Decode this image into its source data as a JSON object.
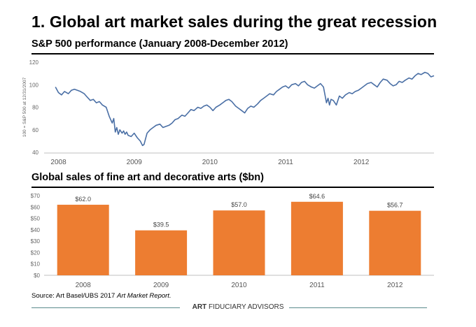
{
  "page": {
    "title": "1. Global art market sales during the great recession",
    "source_prefix": "Source: Art Basel/UBS 2017 ",
    "source_italic": "Art Market Report.",
    "footer_brand": "ART",
    "footer_rest": " FIDUCIARY ADVISORS",
    "line_color": "#4a6fa5",
    "bar_color": "#ed7d31",
    "footer_line_color": "#5a8a8c"
  },
  "chart_data": [
    {
      "type": "line",
      "title": "S&P 500 performance (January 2008-December 2012)",
      "ylabel": "100 = S&P 500 at 12/31/2007",
      "xlabel": "",
      "ylim": [
        40,
        120
      ],
      "yticks": [
        40,
        60,
        80,
        100,
        120
      ],
      "xticks": [
        "2008",
        "2009",
        "2010",
        "2011",
        "2012"
      ],
      "grid": false,
      "series": [
        {
          "x": [
            2008.0,
            2008.04,
            2008.08,
            2008.12,
            2008.17,
            2008.21,
            2008.25,
            2008.29,
            2008.33,
            2008.38,
            2008.42,
            2008.46,
            2008.5,
            2008.54,
            2008.58,
            2008.62,
            2008.67,
            2008.71,
            2008.75,
            2008.77,
            2008.79,
            2008.81,
            2008.83,
            2008.85,
            2008.88,
            2008.9,
            2008.92,
            2008.94,
            2008.96,
            2009.0,
            2009.04,
            2009.08,
            2009.12,
            2009.15,
            2009.17,
            2009.19,
            2009.21,
            2009.25,
            2009.29,
            2009.33,
            2009.38,
            2009.42,
            2009.46,
            2009.5,
            2009.54,
            2009.58,
            2009.62,
            2009.67,
            2009.71,
            2009.75,
            2009.79,
            2009.83,
            2009.88,
            2009.92,
            2009.96,
            2010.0,
            2010.04,
            2010.08,
            2010.12,
            2010.17,
            2010.21,
            2010.25,
            2010.29,
            2010.33,
            2010.38,
            2010.42,
            2010.46,
            2010.5,
            2010.54,
            2010.58,
            2010.62,
            2010.67,
            2010.71,
            2010.75,
            2010.79,
            2010.83,
            2010.88,
            2010.92,
            2010.96,
            2011.0,
            2011.04,
            2011.08,
            2011.12,
            2011.17,
            2011.21,
            2011.25,
            2011.29,
            2011.33,
            2011.38,
            2011.42,
            2011.46,
            2011.5,
            2011.54,
            2011.58,
            2011.6,
            2011.62,
            2011.64,
            2011.67,
            2011.71,
            2011.75,
            2011.79,
            2011.83,
            2011.88,
            2011.92,
            2011.96,
            2012.0,
            2012.04,
            2012.08,
            2012.12,
            2012.17,
            2012.21,
            2012.25,
            2012.29,
            2012.33,
            2012.38,
            2012.42,
            2012.46,
            2012.5,
            2012.54,
            2012.58,
            2012.62,
            2012.67,
            2012.71,
            2012.75,
            2012.79,
            2012.83,
            2012.88,
            2012.92,
            2012.96,
            2013.0
          ],
          "y": [
            98,
            93,
            91,
            94,
            92,
            95,
            96,
            95,
            94,
            92,
            89,
            86,
            87,
            84,
            85,
            82,
            80,
            72,
            66,
            70,
            58,
            62,
            56,
            60,
            57,
            59,
            56,
            58,
            55,
            54,
            57,
            53,
            50,
            46,
            47,
            52,
            57,
            60,
            62,
            64,
            65,
            62,
            63,
            64,
            66,
            69,
            70,
            73,
            72,
            75,
            78,
            77,
            80,
            79,
            81,
            82,
            80,
            77,
            80,
            82,
            84,
            86,
            87,
            85,
            81,
            79,
            77,
            75,
            79,
            81,
            80,
            83,
            86,
            88,
            90,
            92,
            91,
            94,
            96,
            98,
            99,
            97,
            100,
            101,
            99,
            102,
            103,
            100,
            98,
            97,
            99,
            101,
            98,
            84,
            88,
            82,
            87,
            86,
            82,
            90,
            88,
            91,
            93,
            92,
            94,
            95,
            97,
            99,
            101,
            102,
            100,
            98,
            102,
            105,
            104,
            101,
            99,
            100,
            103,
            102,
            104,
            106,
            105,
            108,
            110,
            109,
            111,
            110,
            107,
            108
          ]
        }
      ]
    },
    {
      "type": "bar",
      "title": "Global sales of fine art and decorative arts ($bn)",
      "categories": [
        "2008",
        "2009",
        "2010",
        "2011",
        "2012"
      ],
      "values": [
        62.0,
        39.5,
        57.0,
        64.6,
        56.7
      ],
      "data_labels": [
        "$62.0",
        "$39.5",
        "$57.0",
        "$64.6",
        "$56.7"
      ],
      "ylim": [
        0,
        70
      ],
      "yticks": [
        "$0",
        "$10",
        "$20",
        "$30",
        "$40",
        "$50",
        "$60",
        "$70"
      ],
      "xlabel": "",
      "ylabel": "",
      "grid": false
    }
  ]
}
